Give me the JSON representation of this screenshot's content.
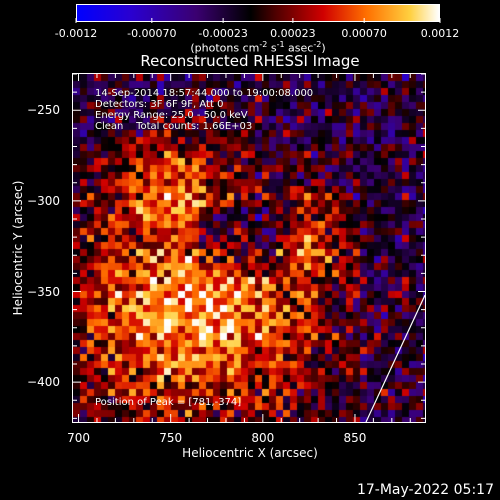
{
  "chart_data": {
    "type": "heatmap",
    "title": "Reconstructed RHESSI Image",
    "xlabel": "Heliocentric X (arcsec)",
    "ylabel": "Heliocentric Y (arcsec)",
    "xlim": [
      697,
      888
    ],
    "ylim": [
      -422,
      -230
    ],
    "x_ticks": [
      700,
      750,
      800,
      850
    ],
    "y_ticks": [
      -250,
      -300,
      -350,
      -400
    ],
    "colorbar": {
      "min": -0.0012,
      "max": 0.0012,
      "tick_labels": [
        "-0.0012",
        "-0.00070",
        "-0.00023",
        "0.00023",
        "0.00070",
        "0.0012"
      ],
      "tick_values": [
        -0.0012,
        -0.0007,
        -0.00023,
        0.00023,
        0.0007,
        0.0012
      ],
      "units_label": "(photons cm",
      "units_exp1": "-2",
      "units_mid": " s",
      "units_exp2": "-1",
      "units_mid2": " asec",
      "units_exp3": "-2",
      "units_end": ")"
    },
    "info_lines": [
      "14-Sep-2014 18:57:44.000 to 19:00:08.000",
      "Detectors: 3F 6F 9F, Att 0",
      "Energy Range: 25.0 - 50.0 keV",
      "Clean    Total counts: 1.66E+03"
    ],
    "peak_label": "Position of Peak = [781,-374]",
    "peak": [
      781,
      -374
    ],
    "limb_line": [
      [
        856,
        -422
      ],
      [
        888,
        -352
      ]
    ],
    "colors": {
      "colormap": [
        "#0000ff",
        "#3a00a0",
        "#000000",
        "#8a0000",
        "#ff2000",
        "#ff9000",
        "#ffff80",
        "#ffffff"
      ]
    }
  },
  "footer_date": "17-May-2022 05:17"
}
